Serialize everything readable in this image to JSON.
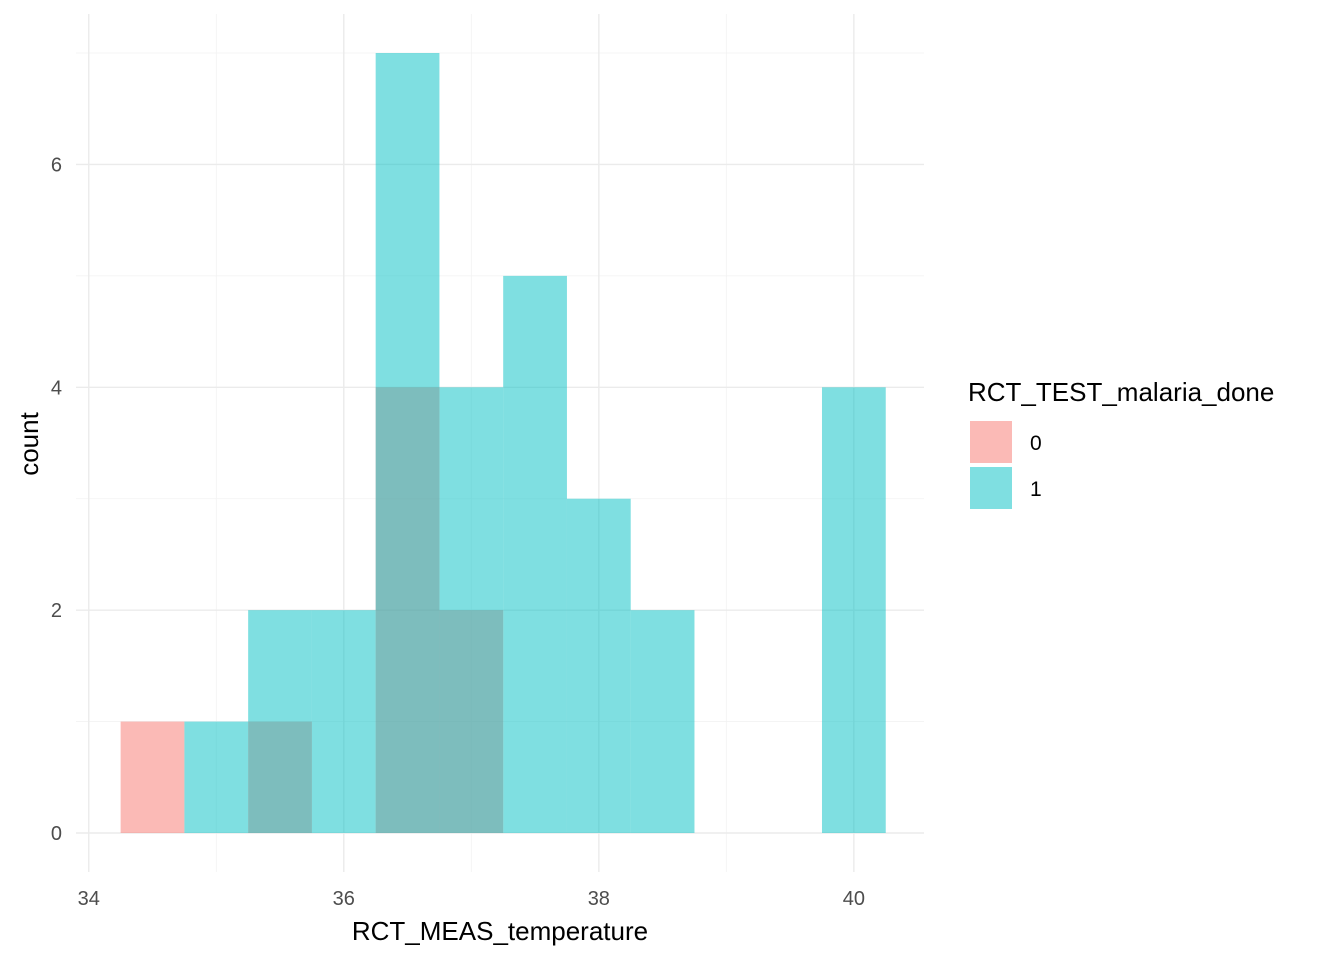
{
  "chart_data": {
    "type": "bar",
    "subtype": "histogram-overlay",
    "title": "",
    "xlabel": "RCT_MEAS_temperature",
    "ylabel": "count",
    "xlim": [
      33.9,
      40.55
    ],
    "ylim": [
      -0.35,
      7.35
    ],
    "x_ticks": [
      34,
      36,
      38,
      40
    ],
    "y_ticks": [
      0,
      2,
      4,
      6
    ],
    "grid": true,
    "bin_width": 0.5,
    "bar_opacity": 0.5,
    "legend": {
      "title": "RCT_TEST_malaria_done",
      "placement": "right",
      "entries": [
        {
          "label": "0",
          "color": "#F8766D"
        },
        {
          "label": "1",
          "color": "#00BFC4"
        }
      ]
    },
    "series": [
      {
        "name": "0",
        "color": "#F8766D",
        "bins": [
          {
            "x0": 34.25,
            "x1": 34.75,
            "count": 1
          },
          {
            "x0": 35.25,
            "x1": 35.75,
            "count": 1
          },
          {
            "x0": 36.25,
            "x1": 36.75,
            "count": 4
          },
          {
            "x0": 36.75,
            "x1": 37.25,
            "count": 2
          }
        ]
      },
      {
        "name": "1",
        "color": "#00BFC4",
        "bins": [
          {
            "x0": 34.75,
            "x1": 35.25,
            "count": 1
          },
          {
            "x0": 35.25,
            "x1": 35.75,
            "count": 2
          },
          {
            "x0": 35.75,
            "x1": 36.25,
            "count": 2
          },
          {
            "x0": 36.25,
            "x1": 36.75,
            "count": 7
          },
          {
            "x0": 36.75,
            "x1": 37.25,
            "count": 4
          },
          {
            "x0": 37.25,
            "x1": 37.75,
            "count": 5
          },
          {
            "x0": 37.75,
            "x1": 38.25,
            "count": 3
          },
          {
            "x0": 38.25,
            "x1": 38.75,
            "count": 2
          },
          {
            "x0": 39.75,
            "x1": 40.25,
            "count": 4
          }
        ]
      }
    ]
  }
}
